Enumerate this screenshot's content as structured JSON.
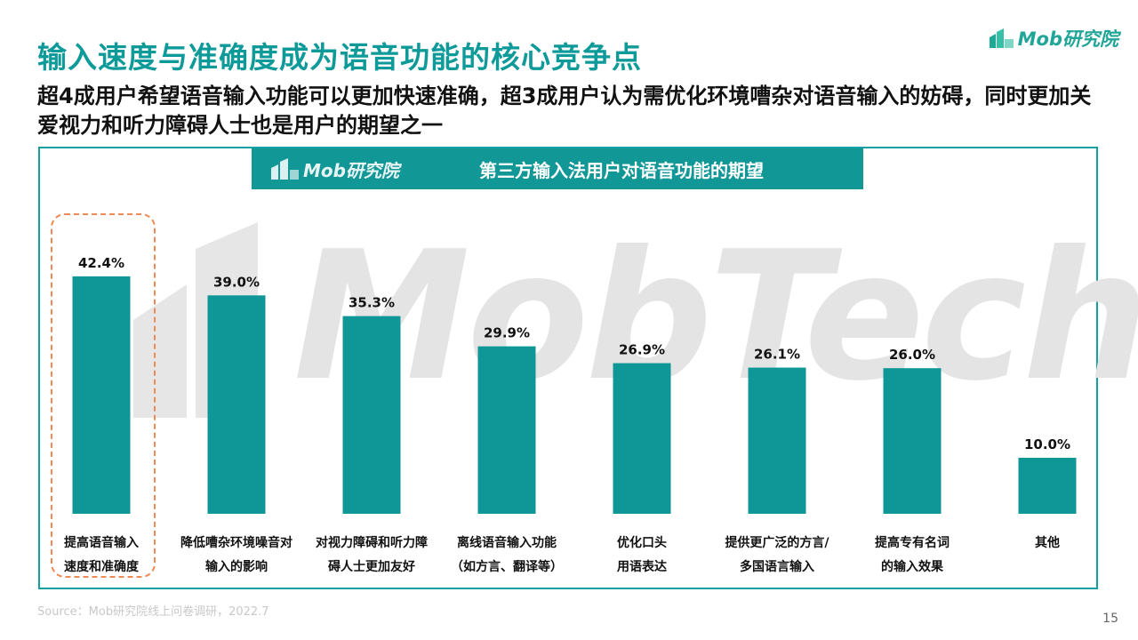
{
  "header": {
    "title": "输入速度与准确度成为语音功能的核心竞争点",
    "subtitle": "超4成用户希望语音输入功能可以更加快速准确，超3成用户认为需优化环境嘈杂对语音输入的妨碍，同时更加关爱视力和听力障碍人士也是用户的期望之一"
  },
  "logo": {
    "text": "Mob研究院"
  },
  "watermark": {
    "text": "MobTech"
  },
  "chart_data": {
    "type": "bar",
    "title": "第三方输入法用户对语音功能的期望",
    "categories": [
      [
        "提高语音输入",
        "速度和准确度"
      ],
      [
        "降低嘈杂环境噪音对",
        "输入的影响"
      ],
      [
        "对视力障碍和听力障",
        "碍人士更加友好"
      ],
      [
        "离线语音输入功能",
        "（如方言、翻译等）"
      ],
      [
        "优化口头",
        "用语表达"
      ],
      [
        "提供更广泛的方言/",
        "多国语言输入"
      ],
      [
        "提高专有名词",
        "的输入效果"
      ],
      [
        "其他"
      ]
    ],
    "values": [
      42.4,
      39.0,
      35.3,
      29.9,
      26.9,
      26.1,
      26.0,
      10.0
    ],
    "value_labels": [
      "42.4%",
      "39.0%",
      "35.3%",
      "29.9%",
      "26.9%",
      "26.1%",
      "26.0%",
      "10.0%"
    ],
    "ylim": [
      0,
      50
    ],
    "highlighted_category_index": 0,
    "bar_color": "#0f9797",
    "grid": false
  },
  "footer": {
    "source": "Source：Mob研究院线上问卷调研，2022.7",
    "page": "15"
  },
  "colors": {
    "accent": "#0f9a9a",
    "highlight_border": "#ef8a55"
  }
}
